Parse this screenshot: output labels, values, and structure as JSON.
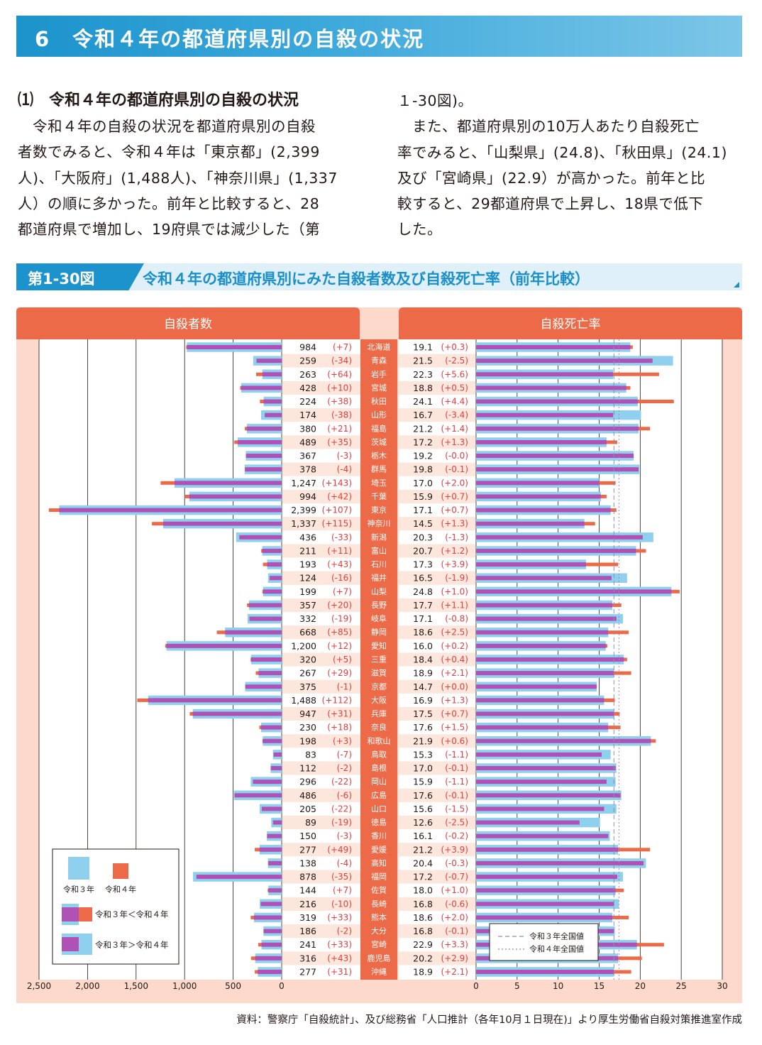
{
  "page_title": "6　令和４年の都道府県別の自殺の状況",
  "section_heading": "⑴　令和４年の都道府県別の自殺の状況",
  "body_left": [
    "　令和４年の自殺の状況を都道府県別の自殺",
    "者数でみると、令和４年は「東京都」(2,399",
    "人)、「大阪府」(1,488人)、「神奈川県」(1,337",
    "人）の順に多かった。前年と比較すると、28",
    "都道府県で増加し、19府県では減少した（第"
  ],
  "body_right": [
    "１-30図)。",
    "　また、都道府県別の10万人あたり自殺死亡",
    "率でみると、「山梨県」(24.8)、「秋田県」(24.1)",
    "及び「宮崎県」(22.9）が高かった。前年と比",
    "較すると、29都道府県で上昇し、18県で低下",
    "した。"
  ],
  "figure": {
    "number": "第1-30図",
    "title": "令和４年の都道府県別にみた自殺者数及び自殺死亡率（前年比較）"
  },
  "colors": {
    "r3": "#8fd0ee",
    "r4": "#ec6a47",
    "overlap": "#b052b5",
    "delta": "#e43d3d",
    "panel": "#ec6a47",
    "bg": "#fcd9cb"
  },
  "chart_data": [
    {
      "type": "bar",
      "title": "自殺者数",
      "orientation": "horizontal-left",
      "xlim": [
        0,
        2500
      ],
      "xticks": [
        "2,500",
        "2,000",
        "1,500",
        "1,000",
        "500",
        "0"
      ],
      "categories": [
        "北海道",
        "青森",
        "岩手",
        "宮城",
        "秋田",
        "山形",
        "福島",
        "茨城",
        "栃木",
        "群馬",
        "埼玉",
        "千葉",
        "東京",
        "神奈川",
        "新潟",
        "富山",
        "石川",
        "福井",
        "山梨",
        "長野",
        "岐阜",
        "静岡",
        "愛知",
        "三重",
        "滋賀",
        "京都",
        "大阪",
        "兵庫",
        "奈良",
        "和歌山",
        "鳥取",
        "島根",
        "岡山",
        "広島",
        "山口",
        "徳島",
        "香川",
        "愛媛",
        "高知",
        "福岡",
        "佐賀",
        "長崎",
        "熊本",
        "大分",
        "宮崎",
        "鹿児島",
        "沖縄"
      ],
      "labels": [
        "984",
        "259",
        "263",
        "428",
        "224",
        "174",
        "380",
        "489",
        "367",
        "378",
        "1,247",
        "994",
        "2,399",
        "1,337",
        "436",
        "211",
        "193",
        "124",
        "199",
        "357",
        "332",
        "668",
        "1,200",
        "320",
        "267",
        "375",
        "1,488",
        "947",
        "230",
        "198",
        "83",
        "112",
        "296",
        "486",
        "205",
        "89",
        "150",
        "277",
        "138",
        "878",
        "144",
        "216",
        "319",
        "186",
        "241",
        "316",
        "277"
      ],
      "deltas": [
        "(+7)",
        "(-34)",
        "(+64)",
        "(+10)",
        "(+38)",
        "(-38)",
        "(+21)",
        "(+35)",
        "(-3)",
        "(-4)",
        "(+143)",
        "(+42)",
        "(+107)",
        "(+115)",
        "(-33)",
        "(+11)",
        "(+43)",
        "(-16)",
        "(+7)",
        "(+20)",
        "(-19)",
        "(+85)",
        "(+12)",
        "(+5)",
        "(+29)",
        "(-1)",
        "(+112)",
        "(+31)",
        "(+18)",
        "(+3)",
        "(-7)",
        "(-2)",
        "(-22)",
        "(-6)",
        "(-22)",
        "(-19)",
        "(-3)",
        "(+49)",
        "(-4)",
        "(-35)",
        "(+7)",
        "(-10)",
        "(+33)",
        "(-2)",
        "(+33)",
        "(+43)",
        "(+31)"
      ],
      "series": [
        {
          "name": "令和３年",
          "values": [
            977,
            293,
            199,
            418,
            186,
            212,
            359,
            454,
            370,
            382,
            1104,
            952,
            2292,
            1222,
            469,
            200,
            150,
            140,
            192,
            337,
            351,
            583,
            1188,
            315,
            238,
            376,
            1376,
            916,
            212,
            195,
            90,
            114,
            318,
            492,
            227,
            108,
            153,
            228,
            142,
            913,
            137,
            226,
            286,
            188,
            208,
            273,
            246
          ]
        },
        {
          "name": "令和４年",
          "values": [
            984,
            259,
            263,
            428,
            224,
            174,
            380,
            489,
            367,
            378,
            1247,
            994,
            2399,
            1337,
            436,
            211,
            193,
            124,
            199,
            357,
            332,
            668,
            1200,
            320,
            267,
            375,
            1488,
            947,
            230,
            198,
            83,
            112,
            296,
            486,
            205,
            89,
            150,
            277,
            138,
            878,
            144,
            216,
            319,
            186,
            241,
            316,
            277
          ]
        }
      ]
    },
    {
      "type": "bar",
      "title": "自殺死亡率",
      "orientation": "horizontal-right",
      "xlim": [
        0,
        30
      ],
      "xticks": [
        "0",
        "5",
        "10",
        "15",
        "20",
        "25",
        "30"
      ],
      "categories": [
        "北海道",
        "青森",
        "岩手",
        "宮城",
        "秋田",
        "山形",
        "福島",
        "茨城",
        "栃木",
        "群馬",
        "埼玉",
        "千葉",
        "東京",
        "神奈川",
        "新潟",
        "富山",
        "石川",
        "福井",
        "山梨",
        "長野",
        "岐阜",
        "静岡",
        "愛知",
        "三重",
        "滋賀",
        "京都",
        "大阪",
        "兵庫",
        "奈良",
        "和歌山",
        "鳥取",
        "島根",
        "岡山",
        "広島",
        "山口",
        "徳島",
        "香川",
        "愛媛",
        "高知",
        "福岡",
        "佐賀",
        "長崎",
        "熊本",
        "大分",
        "宮崎",
        "鹿児島",
        "沖縄"
      ],
      "labels": [
        "19.1",
        "21.5",
        "22.3",
        "18.8",
        "24.1",
        "16.7",
        "21.2",
        "17.2",
        "19.2",
        "19.8",
        "17.0",
        "15.9",
        "17.1",
        "14.5",
        "20.3",
        "20.7",
        "17.3",
        "16.5",
        "24.8",
        "17.7",
        "17.1",
        "18.6",
        "16.0",
        "18.4",
        "18.9",
        "14.7",
        "16.9",
        "17.5",
        "17.6",
        "21.9",
        "15.3",
        "17.0",
        "15.9",
        "17.6",
        "15.6",
        "12.6",
        "16.1",
        "21.2",
        "20.4",
        "17.2",
        "18.0",
        "16.8",
        "18.6",
        "16.8",
        "22.9",
        "20.2",
        "18.9"
      ],
      "deltas": [
        "(+0.3)",
        "(-2.5)",
        "(+5.6)",
        "(+0.5)",
        "(+4.4)",
        "(-3.4)",
        "(+1.4)",
        "(+1.3)",
        "(-0.0)",
        "(-0.1)",
        "(+2.0)",
        "(+0.7)",
        "(+0.7)",
        "(+1.3)",
        "(-1.3)",
        "(+1.2)",
        "(+3.9)",
        "(-1.9)",
        "(+1.0)",
        "(+1.1)",
        "(-0.8)",
        "(+2.5)",
        "(+0.2)",
        "(+0.4)",
        "(+2.1)",
        "(+0.0)",
        "(+1.3)",
        "(+0.7)",
        "(+1.5)",
        "(+0.6)",
        "(-1.1)",
        "(-0.1)",
        "(-1.1)",
        "(-0.1)",
        "(-1.5)",
        "(-2.5)",
        "(-0.2)",
        "(+3.9)",
        "(-0.3)",
        "(-0.7)",
        "(+1.0)",
        "(-0.6)",
        "(+2.0)",
        "(-0.1)",
        "(+3.3)",
        "(+2.9)",
        "(+2.1)"
      ],
      "series": [
        {
          "name": "令和３年",
          "values": [
            18.8,
            24.0,
            16.7,
            18.3,
            19.7,
            20.1,
            19.8,
            15.9,
            19.2,
            19.9,
            15.0,
            15.2,
            16.4,
            13.2,
            21.6,
            19.5,
            13.4,
            18.4,
            23.8,
            16.6,
            17.9,
            16.1,
            15.8,
            18.0,
            16.8,
            14.7,
            15.6,
            16.8,
            16.1,
            21.3,
            16.4,
            17.1,
            17.0,
            17.7,
            17.1,
            15.1,
            16.3,
            17.3,
            20.7,
            17.9,
            17.0,
            17.4,
            16.6,
            16.9,
            19.6,
            17.3,
            16.8
          ]
        },
        {
          "name": "令和４年",
          "values": [
            19.1,
            21.5,
            22.3,
            18.8,
            24.1,
            16.7,
            21.2,
            17.2,
            19.2,
            19.8,
            17.0,
            15.9,
            17.1,
            14.5,
            20.3,
            20.7,
            17.3,
            16.5,
            24.8,
            17.7,
            17.1,
            18.6,
            16.0,
            18.4,
            18.9,
            14.7,
            16.9,
            17.5,
            17.6,
            21.9,
            15.3,
            17.0,
            15.9,
            17.6,
            15.6,
            12.6,
            16.1,
            21.2,
            20.4,
            17.2,
            18.0,
            16.8,
            18.6,
            16.8,
            22.9,
            20.2,
            18.9
          ]
        }
      ],
      "national_reference": [
        {
          "name": "令和３年全国値",
          "value": 16.8
        },
        {
          "name": "令和４年全国値",
          "value": 17.4
        }
      ]
    }
  ],
  "legend": {
    "r3": "令和３年",
    "r4": "令和４年",
    "r3_lt_r4": "令和３年＜令和４年",
    "r3_gt_r4": "令和３年＞令和４年"
  },
  "source": "資料：警察庁「自殺統計」、及び総務省「人口推計（各年10月１日現在)」より厚生労働省自殺対策推進室作成"
}
